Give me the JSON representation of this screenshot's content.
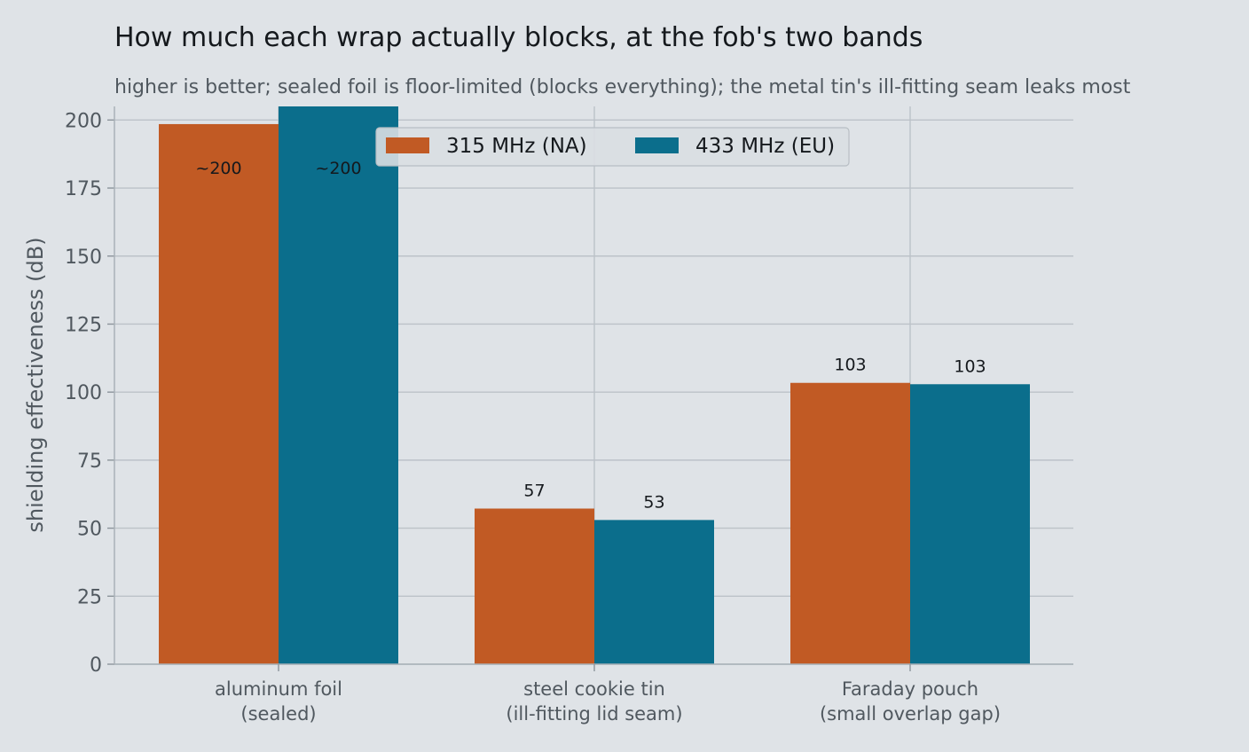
{
  "chart_data": {
    "type": "bar",
    "title": "How much each wrap actually blocks, at the fob's two bands",
    "subtitle": "higher is better; sealed foil is floor-limited (blocks everything); the metal tin's ill-fitting seam leaks most",
    "xlabel": "",
    "ylabel": "shielding effectiveness (dB)",
    "ylim": [
      0,
      200
    ],
    "yticks": [
      0,
      25,
      50,
      75,
      100,
      125,
      150,
      175,
      200
    ],
    "grid": true,
    "legend_position": "top-center",
    "categories": [
      [
        "aluminum foil",
        "(sealed)"
      ],
      [
        "steel cookie tin",
        "(ill-fitting lid seam)"
      ],
      [
        "Faraday pouch",
        "(small overlap gap)"
      ]
    ],
    "series": [
      {
        "name": "315 MHz (NA)",
        "color": "#c15a24",
        "values": [
          198.5,
          57.2,
          103.4
        ],
        "labels": [
          "~200",
          "57",
          "103"
        ]
      },
      {
        "name": "433 MHz (EU)",
        "color": "#0b6e8c",
        "values": [
          205,
          53,
          102.9
        ],
        "labels": [
          "~200",
          "53",
          "103"
        ]
      }
    ]
  }
}
